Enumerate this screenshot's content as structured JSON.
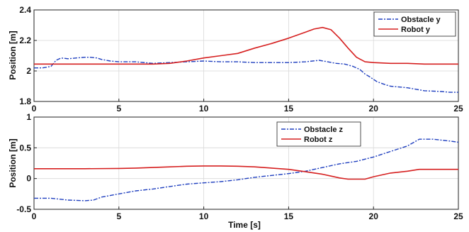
{
  "chart_data": [
    {
      "type": "line",
      "title": "",
      "xlabel": "",
      "ylabel": "Position [m]",
      "xlim": [
        0,
        25
      ],
      "ylim": [
        1.8,
        2.4
      ],
      "xticks": [
        0,
        5,
        10,
        15,
        20,
        25
      ],
      "yticks": [
        1.8,
        2,
        2.2,
        2.4
      ],
      "ytick_labels": [
        "1.8",
        "2",
        "2.2",
        "2.4"
      ],
      "grid": true,
      "legend": "top-right",
      "series": [
        {
          "name": "Obstacle y",
          "color": "#1f3fbf",
          "dash": "dashdot",
          "x": [
            0,
            0.5,
            1,
            1.3,
            1.6,
            2,
            2.5,
            3,
            3.3,
            3.7,
            4,
            4.5,
            5,
            6,
            7,
            8,
            9,
            10,
            11,
            12,
            13,
            14,
            15,
            16,
            16.8,
            17.3,
            17.8,
            18.3,
            18.8,
            19.2,
            19.5,
            19.8,
            20.2,
            20.7,
            21,
            22,
            22.5,
            23,
            24,
            24.5,
            25
          ],
          "y": [
            2.02,
            2.02,
            2.03,
            2.07,
            2.085,
            2.08,
            2.085,
            2.09,
            2.09,
            2.085,
            2.075,
            2.065,
            2.06,
            2.06,
            2.05,
            2.055,
            2.06,
            2.065,
            2.06,
            2.06,
            2.055,
            2.055,
            2.055,
            2.06,
            2.07,
            2.06,
            2.05,
            2.045,
            2.03,
            2.01,
            1.98,
            1.96,
            1.93,
            1.91,
            1.9,
            1.89,
            1.88,
            1.87,
            1.865,
            1.86,
            1.86
          ]
        },
        {
          "name": "Robot y",
          "color": "#d62020",
          "dash": "solid",
          "x": [
            0,
            5,
            7,
            8,
            9,
            10,
            11,
            12,
            13,
            14,
            15,
            15.5,
            16,
            16.5,
            17,
            17.5,
            18,
            18.5,
            19,
            19.5,
            20,
            21,
            22,
            23,
            24,
            25
          ],
          "y": [
            2.045,
            2.045,
            2.045,
            2.05,
            2.065,
            2.085,
            2.1,
            2.115,
            2.15,
            2.18,
            2.215,
            2.235,
            2.255,
            2.275,
            2.285,
            2.27,
            2.215,
            2.15,
            2.09,
            2.06,
            2.055,
            2.05,
            2.05,
            2.045,
            2.045,
            2.045
          ]
        }
      ]
    },
    {
      "type": "line",
      "title": "",
      "xlabel": "Time [s]",
      "ylabel": "Position [m]",
      "xlim": [
        0,
        25
      ],
      "ylim": [
        -0.5,
        1
      ],
      "xticks": [
        0,
        5,
        10,
        15,
        20,
        25
      ],
      "yticks": [
        -0.5,
        0,
        0.5,
        1
      ],
      "ytick_labels": [
        "-0.5",
        "0",
        "0.5",
        "1"
      ],
      "grid": true,
      "legend": "top-center",
      "series": [
        {
          "name": "Obstacle z",
          "color": "#1f3fbf",
          "dash": "dashdot",
          "x": [
            0,
            1,
            2,
            3,
            3.5,
            4,
            5,
            6,
            7,
            8,
            9,
            10,
            11,
            12,
            13,
            14,
            15,
            16,
            17,
            18,
            19,
            20,
            21,
            22,
            22.7,
            23.5,
            24.5,
            25
          ],
          "y": [
            -0.32,
            -0.32,
            -0.35,
            -0.36,
            -0.35,
            -0.3,
            -0.25,
            -0.2,
            -0.17,
            -0.13,
            -0.09,
            -0.07,
            -0.05,
            -0.02,
            0.02,
            0.05,
            0.08,
            0.12,
            0.18,
            0.24,
            0.28,
            0.35,
            0.44,
            0.53,
            0.64,
            0.64,
            0.61,
            0.59
          ]
        },
        {
          "name": "Robot z",
          "color": "#d62020",
          "dash": "solid",
          "x": [
            0,
            3,
            5,
            6,
            7,
            8,
            9,
            10,
            11,
            12,
            13,
            14,
            15,
            16,
            17,
            17.5,
            18,
            18.5,
            19,
            19.5,
            20,
            20.5,
            21,
            22,
            22.7,
            23.5,
            25
          ],
          "y": [
            0.16,
            0.16,
            0.165,
            0.17,
            0.18,
            0.19,
            0.2,
            0.205,
            0.205,
            0.2,
            0.19,
            0.17,
            0.15,
            0.11,
            0.07,
            0.04,
            0.01,
            -0.01,
            -0.01,
            -0.01,
            0.03,
            0.06,
            0.09,
            0.12,
            0.15,
            0.15,
            0.15
          ]
        }
      ]
    }
  ]
}
